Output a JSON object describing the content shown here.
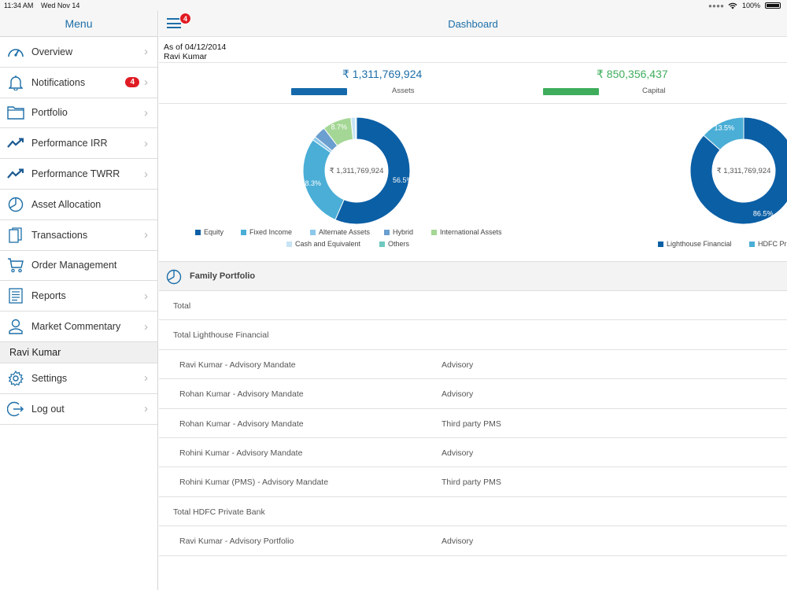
{
  "statusbar": {
    "time": "11:34 AM",
    "date": "Wed Nov 14",
    "battery": "100%"
  },
  "sidebar": {
    "title": "Menu",
    "items": [
      {
        "label": "Overview",
        "icon": "speedometer-icon"
      },
      {
        "label": "Notifications",
        "icon": "bell-icon",
        "badge": "4"
      },
      {
        "label": "Portfolio",
        "icon": "folder-icon"
      },
      {
        "label": "Performance IRR",
        "icon": "trend-up-icon"
      },
      {
        "label": "Performance TWRR",
        "icon": "trend-up-icon"
      },
      {
        "label": "Asset Allocation",
        "icon": "pie-chart-icon"
      },
      {
        "label": "Transactions",
        "icon": "documents-icon"
      },
      {
        "label": "Order Management",
        "icon": "cart-icon"
      },
      {
        "label": "Reports",
        "icon": "report-icon"
      },
      {
        "label": "Market Commentary",
        "icon": "user-icon"
      }
    ],
    "section_user": "Ravi Kumar",
    "user_items": [
      {
        "label": "Settings",
        "icon": "gear-icon"
      },
      {
        "label": "Log out",
        "icon": "logout-icon"
      }
    ]
  },
  "header": {
    "title": "Dashboard",
    "menu_badge": "4"
  },
  "summary": {
    "as_of": "As of 04/12/2014",
    "client": "Ravi Kumar",
    "assets_value": "₹ 1,311,769,924",
    "assets_label": "Assets",
    "capital_value": "₹ 850,356,437",
    "capital_label": "Capital",
    "capital_fraction": 0.648
  },
  "colors": {
    "brand": "#1c6ea8",
    "assets": "#1569aa",
    "capital": "#3fad5c",
    "equity": "#0b5fa5",
    "fixed_income": "#4aaed6",
    "alternate": "#8cc8ea",
    "hybrid": "#6b9fcf",
    "international": "#a4d795",
    "cash": "#c7e4f5",
    "others": "#6fc9c0"
  },
  "chart_data": [
    {
      "type": "pie",
      "center_label": "₹ 1,311,769,924",
      "categories": [
        "Equity",
        "Fixed Income",
        "Alternate Assets",
        "Hybrid",
        "International Assets",
        "Cash and Equivalent",
        "Others"
      ],
      "values": [
        56.5,
        28.3,
        1.1,
        3.7,
        8.7,
        1.4,
        0.3
      ],
      "labels": [
        "56.5%",
        "28.3%",
        "",
        "",
        "8.7%",
        "",
        ""
      ]
    },
    {
      "type": "pie",
      "center_label": "₹ 1,311,769,924",
      "categories": [
        "Lighthouse Financial",
        "HDFC Pri"
      ],
      "values": [
        86.5,
        13.5
      ],
      "labels": [
        "86.5%",
        "13.5%"
      ]
    }
  ],
  "family_portfolio": {
    "title": "Family Portfolio",
    "rows": [
      {
        "name": "Total",
        "type": "",
        "indent": false
      },
      {
        "name": "Total Lighthouse Financial",
        "type": "",
        "indent": false
      },
      {
        "name": "Ravi Kumar - Advisory Mandate",
        "type": "Advisory",
        "indent": true
      },
      {
        "name": "Rohan Kumar - Advisory Mandate",
        "type": "Advisory",
        "indent": true
      },
      {
        "name": "Rohan Kumar - Advisory Mandate",
        "type": "Third party PMS",
        "indent": true
      },
      {
        "name": "Rohini Kumar - Advisory Mandate",
        "type": "Advisory",
        "indent": true
      },
      {
        "name": "Rohini Kumar (PMS) - Advisory Mandate",
        "type": "Third party PMS",
        "indent": true
      },
      {
        "name": "Total HDFC Private Bank",
        "type": "",
        "indent": false
      },
      {
        "name": "Ravi Kumar - Advisory Portfolio",
        "type": "Advisory",
        "indent": true
      }
    ]
  }
}
